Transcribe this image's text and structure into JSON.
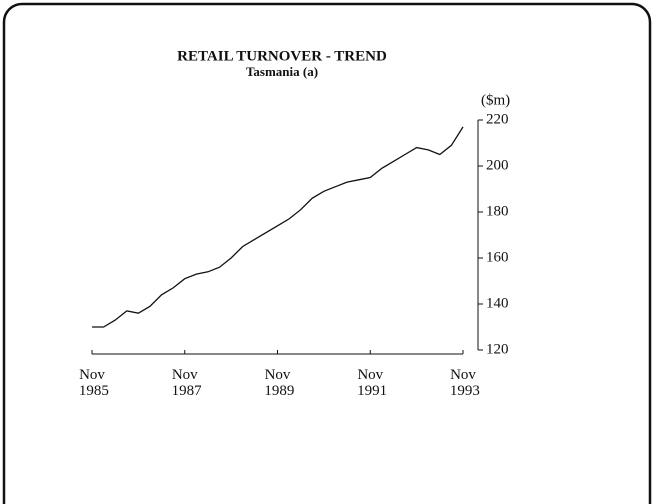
{
  "chart_data": {
    "type": "line",
    "title": "RETAIL TURNOVER - TREND",
    "subtitle": "Tasmania (a)",
    "y_label": "($m)",
    "categories": [
      "Nov 1985",
      null,
      null,
      null,
      null,
      null,
      null,
      null,
      "Nov 1987",
      null,
      null,
      null,
      null,
      null,
      null,
      null,
      "Nov 1989",
      null,
      null,
      null,
      null,
      null,
      null,
      null,
      "Nov 1991",
      null,
      null,
      null,
      null,
      null,
      null,
      null,
      "Nov 1993"
    ],
    "series": [
      {
        "name": "Retail turnover",
        "color": "#111111",
        "values": [
          130,
          130,
          133,
          137,
          136,
          139,
          144,
          147,
          151,
          153,
          154,
          156,
          160,
          165,
          168,
          171,
          174,
          177,
          181,
          186,
          189,
          191,
          193,
          194,
          195,
          199,
          202,
          205,
          208,
          207,
          205,
          209,
          217
        ]
      }
    ],
    "ylim": [
      120,
      220
    ],
    "yticks": [
      120,
      140,
      160,
      180,
      200,
      220
    ],
    "y_axis_side": "right"
  }
}
